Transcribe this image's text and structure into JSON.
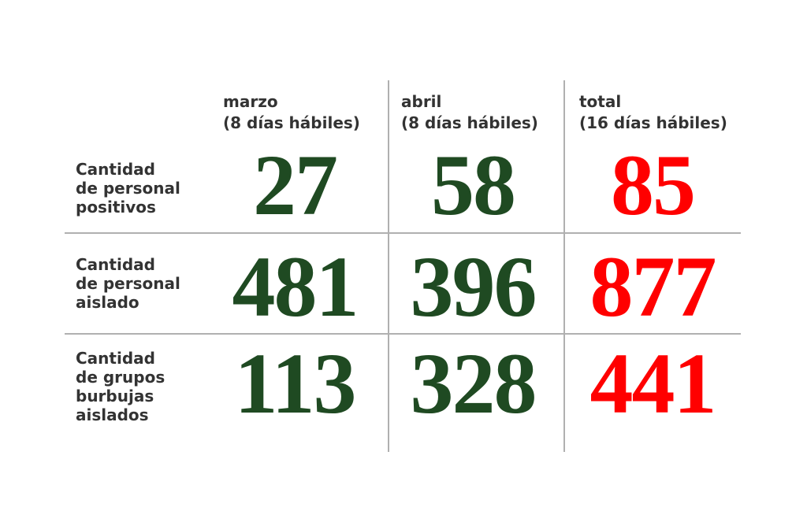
{
  "chart_data": {
    "type": "table",
    "columns": [
      {
        "line1": "marzo",
        "line2": "(8 días hábiles)"
      },
      {
        "line1": "abril",
        "line2": "(8 días hábiles)"
      },
      {
        "line1": "total",
        "line2": "(16 días hábiles)"
      }
    ],
    "rows": [
      {
        "label": [
          "Cantidad",
          "de personal",
          "positivos"
        ],
        "values": [
          "27",
          "58",
          "85"
        ]
      },
      {
        "label": [
          "Cantidad",
          "de personal",
          "aislado"
        ],
        "values": [
          "481",
          "396",
          "877"
        ]
      },
      {
        "label": [
          "Cantidad",
          "de grupos",
          "burbujas",
          "aislados"
        ],
        "values": [
          "113",
          "328",
          "441"
        ]
      }
    ],
    "colors": {
      "value": "#1f4a22",
      "total": "#ff0000",
      "label": "#333333",
      "grid": "#b0b0b0"
    }
  }
}
